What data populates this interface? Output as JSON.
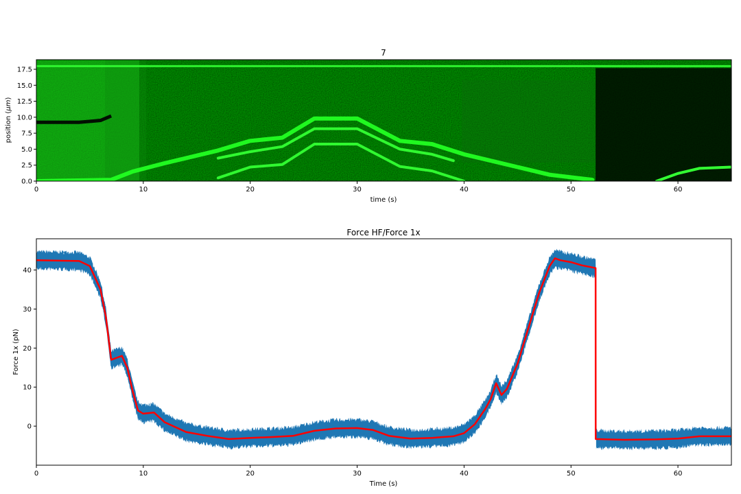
{
  "chart_data": [
    {
      "type": "heatmap",
      "title": "7",
      "xlabel": "time (s)",
      "ylabel_prefix": "position (",
      "ylabel_unit": "μm",
      "ylabel_suffix": ")",
      "xlim": [
        0,
        65
      ],
      "ylim": [
        0,
        19
      ],
      "xticks": [
        0,
        10,
        20,
        30,
        40,
        50,
        60
      ],
      "yticks": [
        0.0,
        2.5,
        5.0,
        7.5,
        10.0,
        12.5,
        15.0,
        17.5
      ],
      "ytick_labels": [
        "0.0",
        "2.5",
        "5.0",
        "7.5",
        "10.0",
        "12.5",
        "15.0",
        "17.5"
      ],
      "colormap": [
        "#000000",
        "#00ff00"
      ],
      "bright_bands": [
        {
          "x": [
            0,
            7,
            9,
            12,
            17,
            20,
            23,
            26,
            30,
            34,
            37,
            40,
            45,
            48,
            52
          ],
          "y": [
            0.0,
            0.2,
            1.5,
            2.8,
            4.8,
            6.3,
            6.8,
            9.8,
            9.8,
            6.3,
            5.8,
            4.2,
            2.2,
            1.0,
            0.2
          ]
        },
        {
          "x": [
            17,
            20,
            23,
            26,
            30,
            34,
            37,
            39
          ],
          "y": [
            3.6,
            4.6,
            5.4,
            8.2,
            8.2,
            5.0,
            4.2,
            3.2
          ]
        },
        {
          "x": [
            17,
            20,
            23,
            26,
            30,
            34,
            37,
            40
          ],
          "y": [
            0.5,
            2.2,
            2.6,
            5.8,
            5.8,
            2.3,
            1.6,
            0.0
          ]
        },
        {
          "x": [
            58,
            60,
            62,
            65
          ],
          "y": [
            0.0,
            1.2,
            2.0,
            2.2
          ]
        }
      ],
      "top_band_y": 18.0,
      "dark_line": {
        "x": [
          0,
          4,
          6,
          7
        ],
        "y": [
          9.2,
          9.2,
          9.5,
          10.2
        ]
      },
      "signal_drop_time": 52.3
    },
    {
      "type": "line",
      "title": "Force HF/Force 1x",
      "xlabel": "Time (s)",
      "ylabel": "Force 1x (pN)",
      "xlim": [
        0,
        65
      ],
      "ylim": [
        -10,
        48
      ],
      "xticks": [
        0,
        10,
        20,
        30,
        40,
        50,
        60
      ],
      "yticks": [
        0,
        10,
        20,
        30,
        40
      ],
      "series": [
        {
          "color": "#1f77b4",
          "noise_band": 2.2,
          "x": [
            0,
            4,
            5,
            6,
            6.5,
            7,
            7.5,
            8,
            8.5,
            9,
            9.5,
            10,
            11,
            12,
            14,
            16,
            18,
            20,
            22,
            24,
            26,
            28,
            30,
            31.5,
            33,
            35,
            37,
            39,
            40,
            41,
            42,
            42.5,
            43,
            43.5,
            44,
            45,
            46,
            47,
            48,
            48.5,
            49,
            50,
            51,
            52.3,
            52.31,
            55,
            58,
            60,
            62,
            65
          ],
          "y": [
            42.5,
            42.3,
            41.0,
            35.0,
            28.0,
            17.0,
            17.5,
            18.0,
            15.0,
            9.0,
            4.0,
            3.2,
            3.5,
            1.0,
            -1.5,
            -2.5,
            -3.3,
            -3.0,
            -2.8,
            -2.5,
            -1.2,
            -0.6,
            -0.5,
            -1.0,
            -2.5,
            -3.2,
            -3.0,
            -2.6,
            -1.8,
            0.5,
            4.5,
            7.0,
            11.0,
            8.0,
            9.5,
            16.0,
            25.0,
            34.0,
            41.0,
            43.0,
            42.5,
            42.0,
            41.2,
            40.5,
            -3.3,
            -3.5,
            -3.4,
            -3.2,
            -2.6,
            -2.6
          ]
        }
      ]
    }
  ]
}
